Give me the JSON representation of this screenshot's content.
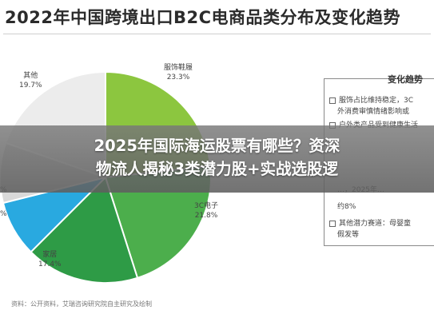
{
  "chart_data": {
    "type": "pie",
    "title": "2022年中国跨境出口B2C电商品类分布及变化趋势",
    "slices": [
      {
        "name": "服饰鞋履",
        "pct_label": "23.3%",
        "value": 23.3,
        "color": "#8cc63f"
      },
      {
        "name": "3C电子",
        "pct_label": "21.8%",
        "value": 21.8,
        "color": "#4cae4c"
      },
      {
        "name": "家居",
        "pct_label": "17.4%",
        "value": 17.4,
        "color": "#2e9b46"
      },
      {
        "name": "",
        "pct_label": "",
        "value": 8.6,
        "color": "#29a9e0"
      },
      {
        "name": "",
        "pct_label": "",
        "value": 9.2,
        "color": "#d9d9d9"
      },
      {
        "name": "其他",
        "pct_label": "19.7%",
        "value": 19.7,
        "color": "#ececec"
      }
    ],
    "edge_labels": [
      "%",
      "%"
    ]
  },
  "trend": {
    "title": "变化趋势",
    "items": [
      "服饰占比维持稳定，3C",
      "外消费审慎情绪影响或",
      "户外类产品受到健康生活",
      "新增，同比增长…",
      "…产品受…",
      "…东等地…",
      "…，2025年…",
      "约8%",
      "其他潜力赛道：母婴童",
      "假发等"
    ]
  },
  "source": "资料：公开资料，艾瑞咨询研究院自主研究及绘制",
  "overlay": {
    "line1": "2025年国际海运股票有哪些？资深",
    "line2": "物流人揭秘3类潜力股+实战选股逻"
  }
}
